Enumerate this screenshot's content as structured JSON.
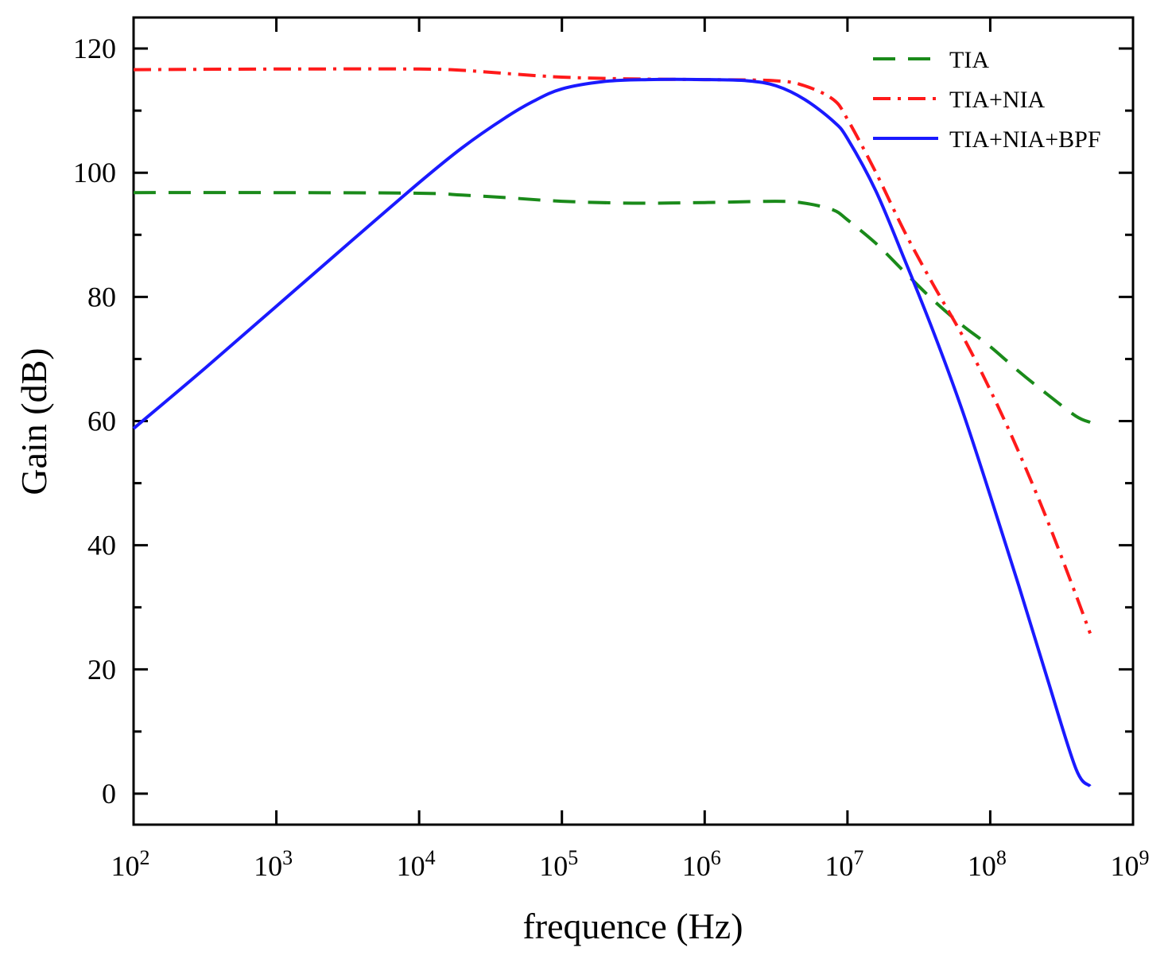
{
  "chart_data": {
    "type": "line",
    "title": "",
    "xlabel": "frequence (Hz)",
    "ylabel": "Gain (dB)",
    "xscale": "log",
    "xlim": [
      100,
      1000000000
    ],
    "ylim": [
      -5,
      125
    ],
    "x_ticks": [
      {
        "value": 100,
        "base": "10",
        "exp": "2"
      },
      {
        "value": 1000,
        "base": "10",
        "exp": "3"
      },
      {
        "value": 10000,
        "base": "10",
        "exp": "4"
      },
      {
        "value": 100000,
        "base": "10",
        "exp": "5"
      },
      {
        "value": 1000000,
        "base": "10",
        "exp": "6"
      },
      {
        "value": 10000000,
        "base": "10",
        "exp": "7"
      },
      {
        "value": 100000000,
        "base": "10",
        "exp": "8"
      },
      {
        "value": 1000000000,
        "base": "10",
        "exp": "9"
      }
    ],
    "y_ticks": [
      "0",
      "20",
      "40",
      "60",
      "80",
      "100",
      "120"
    ],
    "legend_position": "top-right",
    "series": [
      {
        "name": "TIA",
        "color": "#1a8a1a",
        "style": "dashed",
        "log_x": [
          2,
          3,
          4,
          4.3,
          4.6,
          5,
          5.5,
          6,
          6.5,
          6.7,
          6.9,
          7.0,
          7.2,
          7.4,
          7.6,
          7.8,
          8.0,
          8.2,
          8.4,
          8.6,
          8.7
        ],
        "y": [
          96.8,
          96.8,
          96.7,
          96.4,
          96.0,
          95.4,
          95.1,
          95.2,
          95.4,
          95.1,
          94.0,
          92.4,
          88.6,
          84.0,
          79.5,
          75.5,
          72.0,
          68.0,
          64.3,
          60.8,
          59.8
        ]
      },
      {
        "name": "TIA+NIA",
        "color": "#ff1a1a",
        "style": "dashdot",
        "log_x": [
          2,
          3,
          4,
          4.3,
          4.6,
          5,
          5.5,
          6,
          6.5,
          6.7,
          6.9,
          7.0,
          7.2,
          7.4,
          7.6,
          7.8,
          8.0,
          8.2,
          8.4,
          8.6,
          8.7
        ],
        "y": [
          116.6,
          116.7,
          116.7,
          116.5,
          116.0,
          115.4,
          115.1,
          115.0,
          114.8,
          114.0,
          111.8,
          108.6,
          100.0,
          90.5,
          82.0,
          74.0,
          65.0,
          55.0,
          44.0,
          32.0,
          25.8
        ]
      },
      {
        "name": "TIA+NIA+BPF",
        "color": "#1a1aff",
        "style": "solid",
        "log_x": [
          2,
          2.5,
          3,
          3.5,
          4,
          4.3,
          4.6,
          4.8,
          5,
          5.3,
          5.6,
          6,
          6.3,
          6.5,
          6.7,
          6.9,
          7.0,
          7.2,
          7.4,
          7.6,
          7.8,
          8.0,
          8.2,
          8.4,
          8.6,
          8.7
        ],
        "y": [
          58.8,
          68.5,
          78.5,
          88.5,
          98.4,
          104.0,
          108.8,
          111.5,
          113.5,
          114.7,
          115.0,
          115.0,
          114.8,
          114.0,
          111.8,
          108.3,
          105.5,
          97.0,
          86.0,
          74.5,
          62.0,
          48.0,
          33.5,
          18.5,
          4.0,
          1.2
        ]
      }
    ]
  }
}
